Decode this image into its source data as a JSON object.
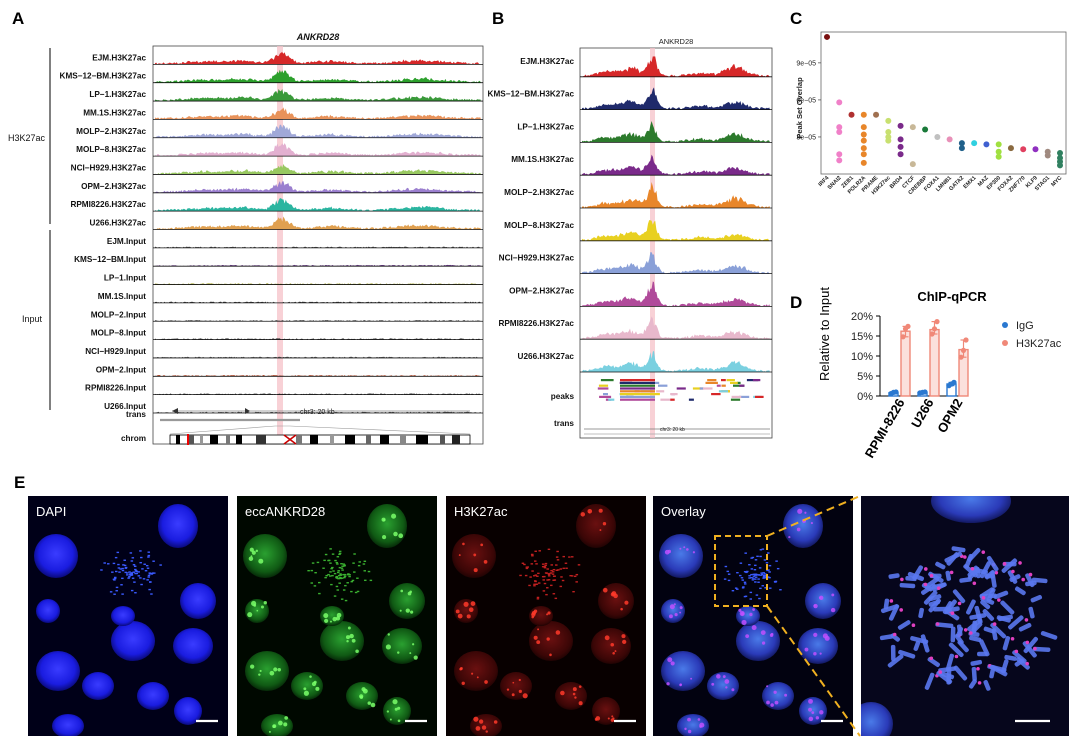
{
  "panels": {
    "A": "A",
    "B": "B",
    "C": "C",
    "D": "D",
    "E": "E"
  },
  "panelA": {
    "gene": "ANKRD28",
    "group_h3k27ac": "H3K27ac",
    "group_input": "Input",
    "tracks": [
      {
        "label": "EJM.H3K27ac",
        "color": "#d62728"
      },
      {
        "label": "KMS−12−BM.H3K27ac",
        "color": "#2ca02c"
      },
      {
        "label": "LP−1.H3K27ac",
        "color": "#3a9a3a"
      },
      {
        "label": "MM.1S.H3K27ac",
        "color": "#e8925a"
      },
      {
        "label": "MOLP−2.H3K27ac",
        "color": "#a0a8d8"
      },
      {
        "label": "MOLP−8.H3K27ac",
        "color": "#e3b0d0"
      },
      {
        "label": "NCI−H929.H3K27ac",
        "color": "#98c860"
      },
      {
        "label": "OPM−2.H3K27ac",
        "color": "#9b7fcf"
      },
      {
        "label": "RPMI8226.H3K27ac",
        "color": "#2bb5a0"
      },
      {
        "label": "U266.H3K27ac",
        "color": "#e0a050"
      },
      {
        "label": "EJM.Input",
        "color": "#555555"
      },
      {
        "label": "KMS−12−BM.Input",
        "color": "#6b3a8a"
      },
      {
        "label": "LP−1.Input",
        "color": "#b0b040"
      },
      {
        "label": "MM.1S.Input",
        "color": "#404040"
      },
      {
        "label": "MOLP−2.Input",
        "color": "#606060"
      },
      {
        "label": "MOLP−8.Input",
        "color": "#505050"
      },
      {
        "label": "NCI−H929.Input",
        "color": "#6a6a6a"
      },
      {
        "label": "OPM−2.Input",
        "color": "#c05030"
      },
      {
        "label": "RPMI8226.Input",
        "color": "#505050"
      },
      {
        "label": "U266.Input",
        "color": "#555555"
      }
    ],
    "trans_label": "trans",
    "chrom_label": "chrom",
    "scale_text": "chr3: 20 kb"
  },
  "panelB": {
    "gene": "ANKRD28",
    "tracks": [
      {
        "label": "EJM.H3K27ac",
        "color": "#d62728"
      },
      {
        "label": "KMS−12−BM.H3K27ac",
        "color": "#1f2a6b"
      },
      {
        "label": "LP−1.H3K27ac",
        "color": "#2c7a2c"
      },
      {
        "label": "MM.1S.H3K27ac",
        "color": "#7a2a8a"
      },
      {
        "label": "MOLP−2.H3K27ac",
        "color": "#e8862a"
      },
      {
        "label": "MOLP−8.H3K27ac",
        "color": "#e8d020"
      },
      {
        "label": "NCI−H929.H3K27ac",
        "color": "#8aa0d8"
      },
      {
        "label": "OPM−2.H3K27ac",
        "color": "#b04a9a"
      },
      {
        "label": "RPMI8226.H3K27ac",
        "color": "#e8b8cc"
      },
      {
        "label": "U266.H3K27ac",
        "color": "#7ad0e0"
      }
    ],
    "peaks_label": "peaks",
    "trans_label": "trans",
    "scale_text": "chr3: 20 kb"
  },
  "panelC": {
    "ylabel": "Peak Set Overlap",
    "chart_data": {
      "type": "scatter",
      "categories": [
        "IRF4",
        "SNAI2",
        "ZEB1",
        "POLR2A",
        "PRAME",
        "H3K27ac",
        "BRD4",
        "CTCF",
        "CREBBP",
        "FOXA1",
        "LMNB1",
        "GATA2",
        "EMX1",
        "MAZ",
        "EP300",
        "FOXA2",
        "ZNF770",
        "KLF9",
        "STAG1",
        "MYC"
      ],
      "yticks": [
        "3e−05",
        "6e−05",
        "9e−05"
      ],
      "ylim": [
        0,
        0.000115
      ],
      "points": [
        {
          "cat": "IRF4",
          "y": 0.000111,
          "color": "#7a1010"
        },
        {
          "cat": "SNAI2",
          "y": 5.8e-05,
          "color": "#f080c8"
        },
        {
          "cat": "SNAI2",
          "y": 3.8e-05,
          "color": "#f080c8"
        },
        {
          "cat": "SNAI2",
          "y": 3.4e-05,
          "color": "#f080c8"
        },
        {
          "cat": "SNAI2",
          "y": 1.6e-05,
          "color": "#f080c8"
        },
        {
          "cat": "SNAI2",
          "y": 1.1e-05,
          "color": "#f080c8"
        },
        {
          "cat": "ZEB1",
          "y": 4.8e-05,
          "color": "#b03030"
        },
        {
          "cat": "POLR2A",
          "y": 4.8e-05,
          "color": "#e8862a"
        },
        {
          "cat": "POLR2A",
          "y": 3.8e-05,
          "color": "#e8862a"
        },
        {
          "cat": "POLR2A",
          "y": 3.2e-05,
          "color": "#e8862a"
        },
        {
          "cat": "POLR2A",
          "y": 2.7e-05,
          "color": "#e8862a"
        },
        {
          "cat": "POLR2A",
          "y": 2.1e-05,
          "color": "#e8862a"
        },
        {
          "cat": "POLR2A",
          "y": 1.6e-05,
          "color": "#e8862a"
        },
        {
          "cat": "POLR2A",
          "y": 9e-06,
          "color": "#e8862a"
        },
        {
          "cat": "PRAME",
          "y": 4.8e-05,
          "color": "#a07050"
        },
        {
          "cat": "H3K27ac",
          "y": 4.3e-05,
          "color": "#c8e070"
        },
        {
          "cat": "H3K27ac",
          "y": 3.4e-05,
          "color": "#c8e070"
        },
        {
          "cat": "H3K27ac",
          "y": 3e-05,
          "color": "#c8e070"
        },
        {
          "cat": "H3K27ac",
          "y": 2.7e-05,
          "color": "#c8e070"
        },
        {
          "cat": "BRD4",
          "y": 3.9e-05,
          "color": "#7a2a8a"
        },
        {
          "cat": "BRD4",
          "y": 2.8e-05,
          "color": "#7a2a8a"
        },
        {
          "cat": "BRD4",
          "y": 2.2e-05,
          "color": "#7a2a8a"
        },
        {
          "cat": "BRD4",
          "y": 1.6e-05,
          "color": "#7a2a8a"
        },
        {
          "cat": "CTCF",
          "y": 3.8e-05,
          "color": "#c8b898"
        },
        {
          "cat": "CTCF",
          "y": 8e-06,
          "color": "#c8b898"
        },
        {
          "cat": "CREBBP",
          "y": 3.6e-05,
          "color": "#1a7a3a"
        },
        {
          "cat": "FOXA1",
          "y": 3e-05,
          "color": "#c0c0c0"
        },
        {
          "cat": "LMNB1",
          "y": 2.8e-05,
          "color": "#e890b8"
        },
        {
          "cat": "GATA2",
          "y": 2.5e-05,
          "color": "#20608a"
        },
        {
          "cat": "GATA2",
          "y": 2.1e-05,
          "color": "#20608a"
        },
        {
          "cat": "EMX1",
          "y": 2.5e-05,
          "color": "#30d0e0"
        },
        {
          "cat": "MAZ",
          "y": 2.4e-05,
          "color": "#4060d0"
        },
        {
          "cat": "EP300",
          "y": 2.4e-05,
          "color": "#a0e040"
        },
        {
          "cat": "EP300",
          "y": 1.8e-05,
          "color": "#a0e040"
        },
        {
          "cat": "EP300",
          "y": 1.4e-05,
          "color": "#a0e040"
        },
        {
          "cat": "FOXA2",
          "y": 2.1e-05,
          "color": "#8a6a40"
        },
        {
          "cat": "ZNF770",
          "y": 2e-05,
          "color": "#e04060"
        },
        {
          "cat": "KLF9",
          "y": 2e-05,
          "color": "#9030c0"
        },
        {
          "cat": "STAG1",
          "y": 1.8e-05,
          "color": "#a08a80"
        },
        {
          "cat": "STAG1",
          "y": 1.5e-05,
          "color": "#a08a80"
        },
        {
          "cat": "MYC",
          "y": 1.7e-05,
          "color": "#308060"
        },
        {
          "cat": "MYC",
          "y": 1.3e-05,
          "color": "#308060"
        },
        {
          "cat": "MYC",
          "y": 1e-05,
          "color": "#308060"
        },
        {
          "cat": "MYC",
          "y": 7e-06,
          "color": "#308060"
        }
      ]
    }
  },
  "panelD": {
    "chart_data": {
      "type": "bar",
      "title": "ChIP-qPCR",
      "ylabel": "Relative to Input",
      "categories": [
        "RPMI-8226",
        "U266",
        "OPM2"
      ],
      "yticks": [
        "0%",
        "5%",
        "10%",
        "15%",
        "20%"
      ],
      "ylim": [
        0,
        20
      ],
      "series": [
        {
          "name": "IgG",
          "color": "#2a78d0",
          "values": [
            0.8,
            0.9,
            3.0
          ],
          "points": [
            [
              0.6,
              0.9,
              1.0
            ],
            [
              0.8,
              0.9,
              1.0
            ],
            [
              2.6,
              3.0,
              3.4
            ]
          ]
        },
        {
          "name": "H3K27ac",
          "color": "#f08878",
          "values": [
            16.2,
            16.6,
            11.6
          ],
          "points": [
            [
              14.8,
              16.8,
              17.4
            ],
            [
              15.5,
              16.8,
              18.6
            ],
            [
              9.7,
              11.4,
              14.0
            ]
          ]
        }
      ]
    }
  },
  "panelE": {
    "labels": [
      "DAPI",
      "eccANKRD28",
      "H3K27ac",
      "Overlay"
    ]
  }
}
